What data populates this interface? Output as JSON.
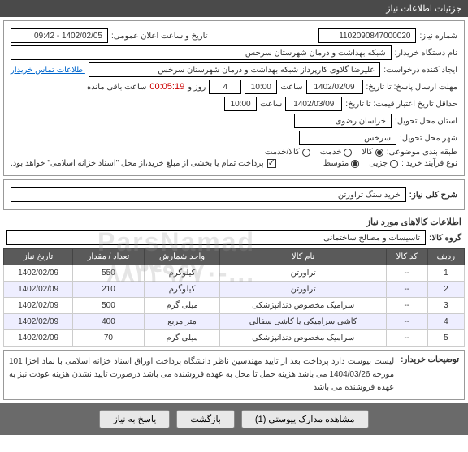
{
  "topbar": {
    "title": "جزئیات اطلاعات نیاز"
  },
  "header": {
    "need_no_lbl": "شماره نیاز:",
    "need_no": "1102090847000020",
    "pub_dt_lbl": "تاریخ و ساعت اعلان عمومی:",
    "pub_dt": "1402/02/05 - 09:42",
    "buyer_lbl": "نام دستگاه خریدار:",
    "buyer": "شبکه بهداشت و درمان شهرستان سرخس",
    "requester_lbl": "ایجاد کننده درخواست:",
    "requester": "علیرضا گلاوی کارپرداز شبکه بهداشت و درمان شهرستان سرخس",
    "contact_link": "اطلاعات تماس خریدار",
    "deadline_lbl": "مهلت ارسال پاسخ: تا تاریخ:",
    "deadline_date": "1402/02/09",
    "time_lbl": "ساعت",
    "deadline_time": "10:00",
    "days_lbl": "روز و",
    "days": "4",
    "remain_lbl": "ساعت باقی مانده",
    "remain": "00:05:19",
    "validity_lbl": "حداقل تاریخ اعتبار قیمت: تا تاریخ:",
    "validity_date": "1402/03/09",
    "validity_time": "10:00",
    "province_lbl": "استان محل تحویل:",
    "province": "خراسان رضوی",
    "city_lbl": "شهر محل تحویل:",
    "city": "سرخس",
    "class_lbl": "طبقه بندی موضوعی:",
    "class_opts": [
      "کالا",
      "خدمت",
      "کالا/خدمت"
    ],
    "class_sel": 0,
    "process_lbl": "نوع فرآیند خرید :",
    "process_opts": [
      "جزیی",
      "متوسط"
    ],
    "process_sel": 1,
    "pay_note": "پرداخت تمام یا بخشی از مبلغ خرید،از محل \"اسناد خزانه اسلامی\" خواهد بود.",
    "pay_chk": true
  },
  "need_title_lbl": "شرح کلی نیاز:",
  "need_title": "خرید سنگ تراورتن",
  "goods_section": "اطلاعات کالاهای مورد نیاز",
  "group_lbl": "گروه کالا:",
  "group": "تاسیسات و مصالح ساختمانی",
  "table": {
    "cols": [
      "ردیف",
      "کد کالا",
      "نام کالا",
      "واحد شمارش",
      "تعداد / مقدار",
      "تاریخ نیاز"
    ],
    "rows": [
      [
        "1",
        "--",
        "تراورتن",
        "کیلوگرم",
        "550",
        "1402/02/09"
      ],
      [
        "2",
        "--",
        "تراورتن",
        "کیلوگرم",
        "210",
        "1402/02/09"
      ],
      [
        "3",
        "--",
        "سرامیک مخصوص دندانپزشکی",
        "میلی گرم",
        "500",
        "1402/02/09"
      ],
      [
        "4",
        "--",
        "کاشی سرامیکی یا کاشی سفالی",
        "متر مربع",
        "400",
        "1402/02/09"
      ],
      [
        "5",
        "--",
        "سرامیک مخصوص دندانپزشکی",
        "میلی گرم",
        "70",
        "1402/02/09"
      ]
    ]
  },
  "desc_lbl": "توضیحات خریدار:",
  "desc": "لیست پیوست دارد پرداخت بعد از تایید مهندسین ناظر دانشگاه پرداخت اوراق اسناد خزانه اسلامی با نماد اخزا 101 مورخه 1404/03/26 می باشد هزینه حمل تا محل به عهده فروشنده می باشد درصورت تایید نشدن هزینه عودت نیز به عهده فروشنده می باشد",
  "footer": {
    "attach": "مشاهده مدارک پیوستی (1)",
    "back": "بازگشت",
    "respond": "پاسخ به نیاز"
  },
  "watermark": "ParsNamad\n...-۸۸۳۴۹۶۷۰"
}
